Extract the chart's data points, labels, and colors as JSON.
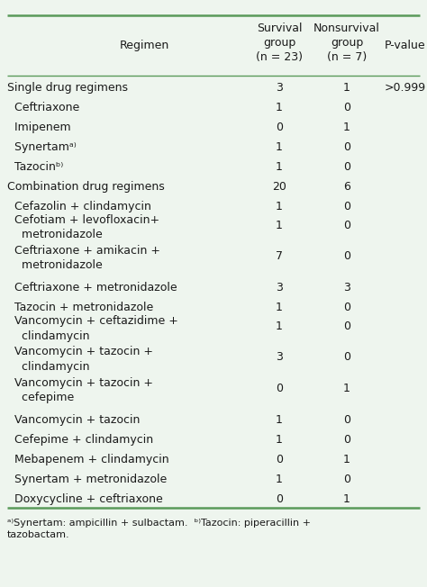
{
  "header": [
    "Regimen",
    "Survival\ngroup\n(n = 23)",
    "Nonsurvival\ngroup\n(n = 7)",
    "P-value"
  ],
  "rows": [
    {
      "label": "Single drug regimens",
      "indent": 0,
      "survival": "3",
      "nonsurvival": "1",
      "pvalue": ">0.999"
    },
    {
      "label": "  Ceftriaxone",
      "indent": 1,
      "survival": "1",
      "nonsurvival": "0",
      "pvalue": ""
    },
    {
      "label": "  Imipenem",
      "indent": 1,
      "survival": "0",
      "nonsurvival": "1",
      "pvalue": ""
    },
    {
      "label": "  Synertamᵃ⁾",
      "indent": 1,
      "survival": "1",
      "nonsurvival": "0",
      "pvalue": ""
    },
    {
      "label": "  Tazocinᵇ⁾",
      "indent": 1,
      "survival": "1",
      "nonsurvival": "0",
      "pvalue": ""
    },
    {
      "label": "Combination drug regimens",
      "indent": 0,
      "survival": "20",
      "nonsurvival": "6",
      "pvalue": ""
    },
    {
      "label": "  Cefazolin + clindamycin",
      "indent": 1,
      "survival": "1",
      "nonsurvival": "0",
      "pvalue": ""
    },
    {
      "label": "  Cefotiam + levofloxacin+\n    metronidazole",
      "indent": 1,
      "survival": "1",
      "nonsurvival": "0",
      "pvalue": ""
    },
    {
      "label": "  Ceftriaxone + amikacin +\n    metronidazole",
      "indent": 1,
      "survival": "7",
      "nonsurvival": "0",
      "pvalue": ""
    },
    {
      "label": "  Ceftriaxone + metronidazole",
      "indent": 1,
      "survival": "3",
      "nonsurvival": "3",
      "pvalue": ""
    },
    {
      "label": "  Tazocin + metronidazole",
      "indent": 1,
      "survival": "1",
      "nonsurvival": "0",
      "pvalue": ""
    },
    {
      "label": "  Vancomycin + ceftazidime +\n    clindamycin",
      "indent": 1,
      "survival": "1",
      "nonsurvival": "0",
      "pvalue": ""
    },
    {
      "label": "  Vancomycin + tazocin +\n    clindamycin",
      "indent": 1,
      "survival": "3",
      "nonsurvival": "0",
      "pvalue": ""
    },
    {
      "label": "  Vancomycin + tazocin +\n    cefepime",
      "indent": 1,
      "survival": "0",
      "nonsurvival": "1",
      "pvalue": ""
    },
    {
      "label": "  Vancomycin + tazocin",
      "indent": 1,
      "survival": "1",
      "nonsurvival": "0",
      "pvalue": ""
    },
    {
      "label": "  Cefepime + clindamycin",
      "indent": 1,
      "survival": "1",
      "nonsurvival": "0",
      "pvalue": ""
    },
    {
      "label": "  Mebapenem + clindamycin",
      "indent": 1,
      "survival": "0",
      "nonsurvival": "1",
      "pvalue": ""
    },
    {
      "label": "  Synertam + metronidazole",
      "indent": 1,
      "survival": "1",
      "nonsurvival": "0",
      "pvalue": ""
    },
    {
      "label": "  Doxycycline + ceftriaxone",
      "indent": 1,
      "survival": "0",
      "nonsurvival": "1",
      "pvalue": ""
    }
  ],
  "footnote_a": "ᵃ⁾Synertam: ampicillin + sulbactam.",
  "footnote_b": "ᵇ⁾Tazocin: piperacillin +\ntazobactam.",
  "bg_color": "#eef5ee",
  "border_color": "#5a9a5a",
  "text_color": "#1a1a1a",
  "font_size": 9.0,
  "header_font_size": 9.0
}
